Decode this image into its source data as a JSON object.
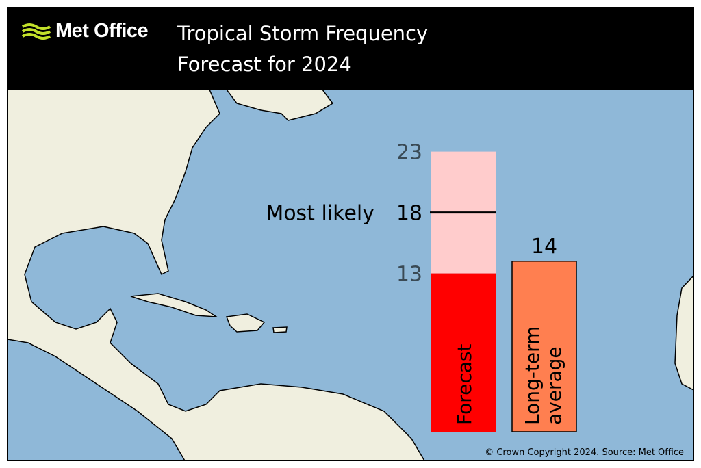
{
  "header": {
    "logo_text": "Met Office",
    "title_line1": "Tropical Storm Frequency",
    "title_line2": "Forecast for 2024"
  },
  "footer": {
    "copyright": "© Crown Copyright 2024. Source: Met Office"
  },
  "colors": {
    "forecast_range": "#ffcccc",
    "forecast_low": "#ff0000",
    "average": "#ff7f50",
    "ocean": "#8fb8d8",
    "land": "#f0efdf"
  },
  "chart_data": {
    "type": "bar",
    "title": "Tropical Storm Frequency Forecast for 2024",
    "categories": [
      "Forecast",
      "Long-term average"
    ],
    "forecast": {
      "label": "Forecast",
      "low": 13,
      "high": 23,
      "most_likely": 18,
      "most_likely_label": "Most likely"
    },
    "average": {
      "label_line1": "Long-term",
      "label_line2": "average",
      "value": 14
    },
    "tick_labels": {
      "low": "13",
      "most_likely": "18",
      "high": "23",
      "average": "14"
    },
    "ylim": [
      0,
      23
    ]
  }
}
